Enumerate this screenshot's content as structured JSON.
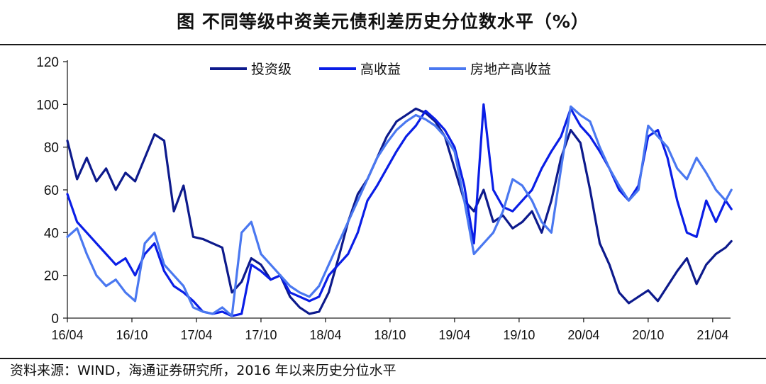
{
  "title": "图  不同等级中资美元债利差历史分位数水平（%）",
  "source": "资料来源：WIND，海通证券研究所，2016 年以来历史分位水平",
  "chart_data": {
    "type": "line",
    "title": "图  不同等级中资美元债利差历史分位数水平（%）",
    "xlabel": "",
    "ylabel": "",
    "ylim": [
      0,
      120
    ],
    "yticks": [
      0,
      20,
      40,
      60,
      80,
      100,
      120
    ],
    "x_range": [
      "2016-04",
      "2021-05"
    ],
    "x_ticks": [
      "16/04",
      "16/10",
      "17/04",
      "17/10",
      "18/04",
      "18/10",
      "19/04",
      "19/10",
      "20/04",
      "20/10",
      "21/04"
    ],
    "grid": false,
    "legend_position": "top",
    "series": [
      {
        "name": "投资级",
        "color": "#0d1a8c",
        "points": [
          [
            0,
            83
          ],
          [
            0.5,
            65
          ],
          [
            1,
            75
          ],
          [
            1.5,
            64
          ],
          [
            2,
            70
          ],
          [
            2.5,
            60
          ],
          [
            3,
            68
          ],
          [
            3.5,
            64
          ],
          [
            4,
            75
          ],
          [
            4.5,
            86
          ],
          [
            5,
            83
          ],
          [
            5.5,
            50
          ],
          [
            6,
            62
          ],
          [
            6.5,
            38
          ],
          [
            7,
            37
          ],
          [
            7.5,
            35
          ],
          [
            8,
            33
          ],
          [
            8.5,
            12
          ],
          [
            9,
            17
          ],
          [
            9.5,
            28
          ],
          [
            10,
            25
          ],
          [
            10.5,
            18
          ],
          [
            11,
            20
          ],
          [
            11.5,
            10
          ],
          [
            12,
            5
          ],
          [
            12.5,
            2
          ],
          [
            13,
            3
          ],
          [
            13.5,
            12
          ],
          [
            14,
            28
          ],
          [
            14.5,
            45
          ],
          [
            15,
            58
          ],
          [
            15.5,
            65
          ],
          [
            16,
            75
          ],
          [
            16.5,
            85
          ],
          [
            17,
            92
          ],
          [
            17.5,
            95
          ],
          [
            18,
            98
          ],
          [
            18.5,
            96
          ],
          [
            19,
            92
          ],
          [
            19.5,
            85
          ],
          [
            20,
            70
          ],
          [
            20.5,
            55
          ],
          [
            21,
            50
          ],
          [
            21.5,
            60
          ],
          [
            22,
            45
          ],
          [
            22.5,
            48
          ],
          [
            23,
            42
          ],
          [
            23.5,
            45
          ],
          [
            24,
            50
          ],
          [
            24.5,
            40
          ],
          [
            25,
            55
          ],
          [
            25.5,
            75
          ],
          [
            26,
            88
          ],
          [
            26.5,
            82
          ],
          [
            27,
            60
          ],
          [
            27.5,
            35
          ],
          [
            28,
            25
          ],
          [
            28.5,
            12
          ],
          [
            29,
            7
          ],
          [
            29.5,
            10
          ],
          [
            30,
            13
          ],
          [
            30.5,
            8
          ],
          [
            31,
            15
          ],
          [
            31.5,
            22
          ],
          [
            32,
            28
          ],
          [
            32.5,
            16
          ],
          [
            33,
            25
          ],
          [
            33.5,
            30
          ],
          [
            34,
            33
          ],
          [
            34.3,
            36
          ]
        ]
      },
      {
        "name": "高收益",
        "color": "#0a1ee6",
        "points": [
          [
            0,
            58
          ],
          [
            0.5,
            45
          ],
          [
            1,
            40
          ],
          [
            1.5,
            35
          ],
          [
            2,
            30
          ],
          [
            2.5,
            25
          ],
          [
            3,
            28
          ],
          [
            3.5,
            20
          ],
          [
            4,
            30
          ],
          [
            4.5,
            35
          ],
          [
            5,
            22
          ],
          [
            5.5,
            15
          ],
          [
            6,
            12
          ],
          [
            6.5,
            8
          ],
          [
            7,
            3
          ],
          [
            7.5,
            2
          ],
          [
            8,
            3
          ],
          [
            8.5,
            1
          ],
          [
            9,
            2
          ],
          [
            9.5,
            25
          ],
          [
            10,
            22
          ],
          [
            10.5,
            18
          ],
          [
            11,
            20
          ],
          [
            11.5,
            12
          ],
          [
            12,
            10
          ],
          [
            12.5,
            8
          ],
          [
            13,
            10
          ],
          [
            13.5,
            20
          ],
          [
            14,
            25
          ],
          [
            14.5,
            30
          ],
          [
            15,
            40
          ],
          [
            15.5,
            55
          ],
          [
            16,
            62
          ],
          [
            16.5,
            70
          ],
          [
            17,
            78
          ],
          [
            17.5,
            85
          ],
          [
            18,
            90
          ],
          [
            18.5,
            97
          ],
          [
            19,
            93
          ],
          [
            19.5,
            88
          ],
          [
            20,
            80
          ],
          [
            20.5,
            62
          ],
          [
            21,
            35
          ],
          [
            21.5,
            100
          ],
          [
            22,
            60
          ],
          [
            22.5,
            52
          ],
          [
            23,
            50
          ],
          [
            23.5,
            55
          ],
          [
            24,
            60
          ],
          [
            24.5,
            70
          ],
          [
            25,
            78
          ],
          [
            25.5,
            85
          ],
          [
            26,
            98
          ],
          [
            26.5,
            90
          ],
          [
            27,
            85
          ],
          [
            27.5,
            78
          ],
          [
            28,
            70
          ],
          [
            28.5,
            60
          ],
          [
            29,
            55
          ],
          [
            29.5,
            62
          ],
          [
            30,
            85
          ],
          [
            30.5,
            88
          ],
          [
            31,
            75
          ],
          [
            31.5,
            55
          ],
          [
            32,
            40
          ],
          [
            32.5,
            38
          ],
          [
            33,
            55
          ],
          [
            33.5,
            45
          ],
          [
            34,
            55
          ],
          [
            34.3,
            51
          ]
        ]
      },
      {
        "name": "房地产高收益",
        "color": "#4a78f0",
        "points": [
          [
            0,
            38
          ],
          [
            0.5,
            42
          ],
          [
            1,
            30
          ],
          [
            1.5,
            20
          ],
          [
            2,
            15
          ],
          [
            2.5,
            18
          ],
          [
            3,
            12
          ],
          [
            3.5,
            8
          ],
          [
            4,
            35
          ],
          [
            4.5,
            40
          ],
          [
            5,
            25
          ],
          [
            5.5,
            20
          ],
          [
            6,
            15
          ],
          [
            6.5,
            5
          ],
          [
            7,
            3
          ],
          [
            7.5,
            2
          ],
          [
            8,
            5
          ],
          [
            8.5,
            1
          ],
          [
            9,
            40
          ],
          [
            9.5,
            45
          ],
          [
            10,
            30
          ],
          [
            10.5,
            25
          ],
          [
            11,
            20
          ],
          [
            11.5,
            15
          ],
          [
            12,
            12
          ],
          [
            12.5,
            10
          ],
          [
            13,
            15
          ],
          [
            13.5,
            25
          ],
          [
            14,
            35
          ],
          [
            14.5,
            45
          ],
          [
            15,
            55
          ],
          [
            15.5,
            65
          ],
          [
            16,
            75
          ],
          [
            16.5,
            82
          ],
          [
            17,
            88
          ],
          [
            17.5,
            92
          ],
          [
            18,
            95
          ],
          [
            18.5,
            93
          ],
          [
            19,
            90
          ],
          [
            19.5,
            85
          ],
          [
            20,
            78
          ],
          [
            20.5,
            55
          ],
          [
            21,
            30
          ],
          [
            21.5,
            35
          ],
          [
            22,
            40
          ],
          [
            22.5,
            50
          ],
          [
            23,
            65
          ],
          [
            23.5,
            62
          ],
          [
            24,
            55
          ],
          [
            24.5,
            45
          ],
          [
            25,
            40
          ],
          [
            25.5,
            70
          ],
          [
            26,
            99
          ],
          [
            26.5,
            95
          ],
          [
            27,
            92
          ],
          [
            27.5,
            80
          ],
          [
            28,
            70
          ],
          [
            28.5,
            62
          ],
          [
            29,
            55
          ],
          [
            29.5,
            60
          ],
          [
            30,
            90
          ],
          [
            30.5,
            85
          ],
          [
            31,
            80
          ],
          [
            31.5,
            70
          ],
          [
            32,
            65
          ],
          [
            32.5,
            75
          ],
          [
            33,
            68
          ],
          [
            33.5,
            60
          ],
          [
            34,
            55
          ],
          [
            34.3,
            60
          ]
        ]
      }
    ]
  }
}
